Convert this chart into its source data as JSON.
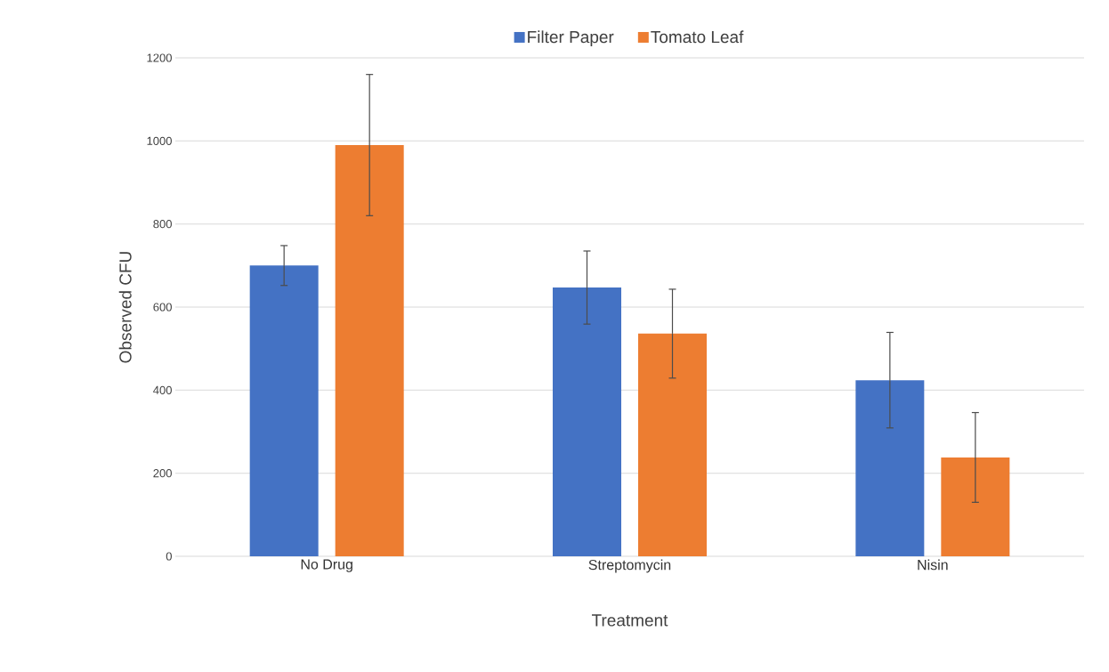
{
  "chart_data": {
    "type": "bar",
    "xlabel": "Treatment",
    "ylabel": "Observed CFU",
    "categories": [
      "No Drug",
      "Streptomycin",
      "Nisin"
    ],
    "series": [
      {
        "name": "Filter Paper",
        "color": "#4472c4",
        "values": [
          700,
          647,
          424
        ],
        "errors": [
          48,
          88,
          115
        ]
      },
      {
        "name": "Tomato Leaf",
        "color": "#ed7d31",
        "values": [
          990,
          536,
          238
        ],
        "errors": [
          170,
          107,
          108
        ]
      }
    ],
    "ylim": [
      0,
      1200
    ],
    "yticks": [
      0,
      200,
      400,
      600,
      800,
      1000,
      1200
    ],
    "grid": "y",
    "legend": "top"
  }
}
